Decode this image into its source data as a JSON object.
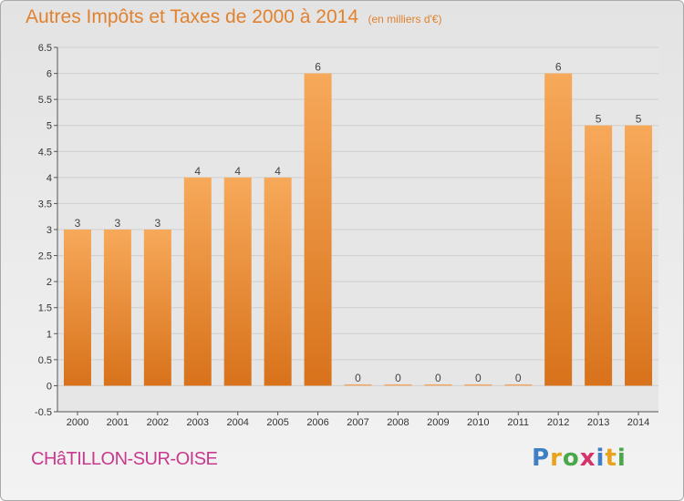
{
  "title": "Autres Impôts et Taxes de 2000 à 2014",
  "subtitle": "(en milliers d'€)",
  "commune": "CHâTILLON-SUR-OISE",
  "logo": {
    "text": "Proxiti",
    "letters": [
      "P",
      "r",
      "o",
      "x",
      "i",
      "t",
      "i"
    ],
    "colors": [
      "#3f80c4",
      "#e8a21c",
      "#4aa84a",
      "#d6336c",
      "#3f80c4",
      "#e8a21c",
      "#4aa84a"
    ]
  },
  "colors": {
    "bar_top": "#f7a95a",
    "bar_bottom": "#d8721b",
    "title": "#e0822f",
    "commune": "#c83a8e"
  },
  "chart_data": {
    "type": "bar",
    "categories": [
      "2000",
      "2001",
      "2002",
      "2003",
      "2004",
      "2005",
      "2006",
      "2007",
      "2008",
      "2009",
      "2010",
      "2011",
      "2012",
      "2013",
      "2014"
    ],
    "values": [
      3,
      3,
      3,
      4,
      4,
      4,
      6,
      0,
      0,
      0,
      0,
      0,
      6,
      5,
      5
    ],
    "data_labels": [
      "3",
      "3",
      "3",
      "4",
      "4",
      "4",
      "6",
      "0",
      "0",
      "0",
      "0",
      "0",
      "6",
      "5",
      "5"
    ],
    "title": "Autres Impôts et Taxes de 2000 à 2014",
    "subtitle": "(en milliers d'€)",
    "ylim": [
      -0.5,
      6.5
    ],
    "yticks": [
      "-0.5",
      "0",
      "0.5",
      "1",
      "1.5",
      "2",
      "2.5",
      "3",
      "3.5",
      "4",
      "4.5",
      "5",
      "5.5",
      "6",
      "6.5"
    ],
    "grid": true
  }
}
